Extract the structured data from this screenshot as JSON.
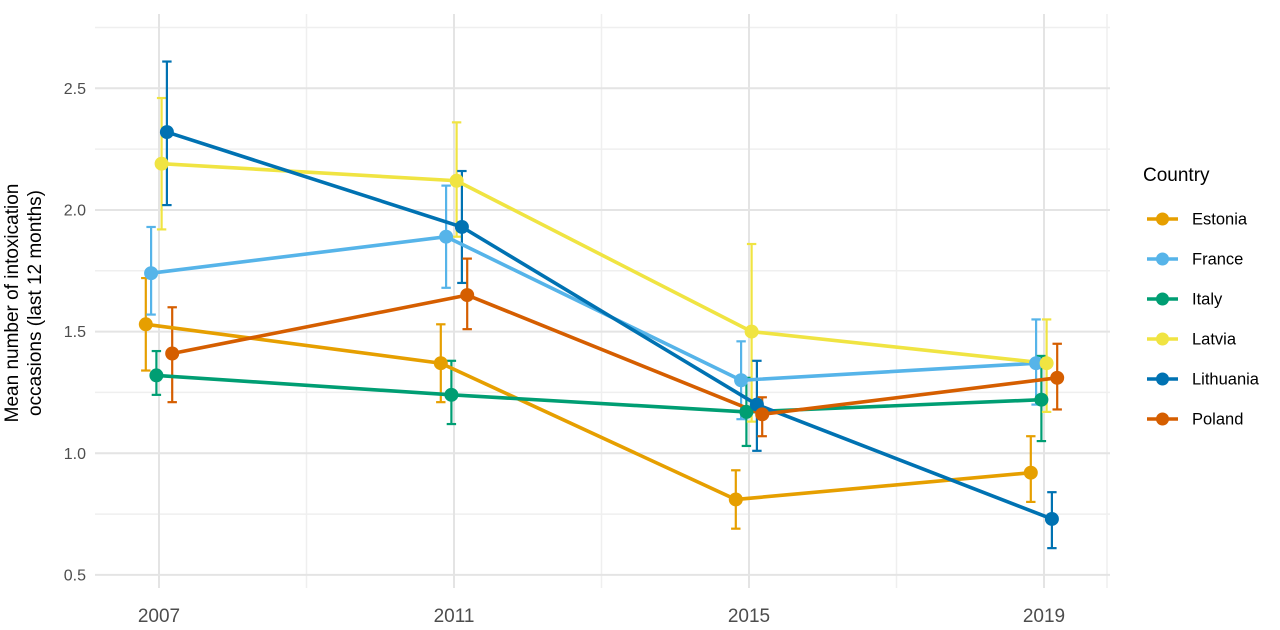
{
  "chart_data": {
    "type": "line",
    "title": "",
    "xlabel": "",
    "ylabel": "Mean number of intoxication occasions (last 12 months)",
    "ylabel_lines": [
      "Mean number of intoxication",
      "occasions (last 12 months)"
    ],
    "x": [
      2007,
      2011,
      2015,
      2019
    ],
    "x_tick_labels": [
      "2007",
      "2011",
      "2015",
      "2019"
    ],
    "y_ticks": [
      0.5,
      1.0,
      1.5,
      2.0,
      2.5
    ],
    "y_tick_labels": [
      "0.5",
      "1.0",
      "1.5",
      "2.0",
      "2.5"
    ],
    "y_minor_ticks": [
      0.75,
      1.25,
      1.75,
      2.25,
      2.75
    ],
    "ylim": [
      0.45,
      2.8
    ],
    "grid": true,
    "error_bars": true,
    "legend_title": "Country",
    "legend_position": "right",
    "series": [
      {
        "name": "Estonia",
        "color": "#E69F00",
        "values": [
          1.53,
          1.37,
          0.81,
          0.92
        ],
        "ci_low": [
          1.34,
          1.21,
          0.69,
          0.8
        ],
        "ci_high": [
          1.72,
          1.53,
          0.93,
          1.07
        ]
      },
      {
        "name": "France",
        "color": "#56B4E9",
        "values": [
          1.74,
          1.89,
          1.3,
          1.37
        ],
        "ci_low": [
          1.57,
          1.68,
          1.14,
          1.2
        ],
        "ci_high": [
          1.93,
          2.1,
          1.46,
          1.55
        ]
      },
      {
        "name": "Italy",
        "color": "#009E73",
        "values": [
          1.32,
          1.24,
          1.17,
          1.22
        ],
        "ci_low": [
          1.24,
          1.12,
          1.03,
          1.05
        ],
        "ci_high": [
          1.42,
          1.38,
          1.31,
          1.4
        ]
      },
      {
        "name": "Latvia",
        "color": "#F0E442",
        "values": [
          2.19,
          2.12,
          1.5,
          1.37
        ],
        "ci_low": [
          1.92,
          1.89,
          1.13,
          1.17
        ],
        "ci_high": [
          2.46,
          2.36,
          1.86,
          1.55
        ]
      },
      {
        "name": "Lithuania",
        "color": "#0072B2",
        "values": [
          2.32,
          1.93,
          1.2,
          0.73
        ],
        "ci_low": [
          2.02,
          1.7,
          1.01,
          0.61
        ],
        "ci_high": [
          2.61,
          2.16,
          1.38,
          0.84
        ]
      },
      {
        "name": "Poland",
        "color": "#D55E00",
        "values": [
          1.41,
          1.65,
          1.16,
          1.31
        ],
        "ci_low": [
          1.21,
          1.51,
          1.07,
          1.18
        ],
        "ci_high": [
          1.6,
          1.8,
          1.23,
          1.45
        ]
      }
    ]
  },
  "colors": {
    "background": "#FFFFFF",
    "gridline_major": "#E4E4E4",
    "gridline_minor": "#EFEFEF",
    "tick_label": "#4D4D4D",
    "text": "#000000"
  }
}
